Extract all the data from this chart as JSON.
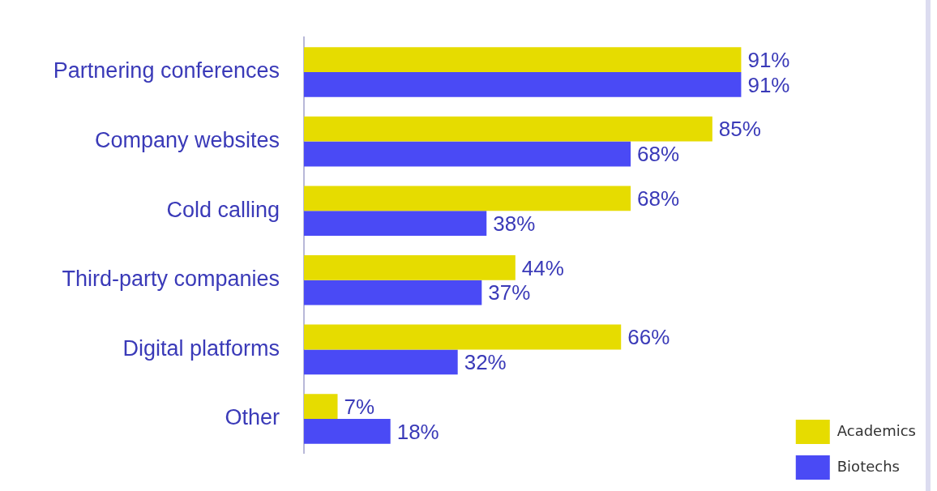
{
  "chart_data": {
    "type": "bar",
    "orientation": "horizontal",
    "categories": [
      "Partnering conferences",
      "Company websites",
      "Cold calling",
      "Third-party companies",
      "Digital platforms",
      "Other"
    ],
    "series": [
      {
        "name": "Academics",
        "color": "#e6dc00",
        "values": [
          91,
          85,
          68,
          44,
          66,
          7
        ],
        "value_labels": [
          "91%",
          "85%",
          "68%",
          "44%",
          "66%",
          "7%"
        ]
      },
      {
        "name": "Biotechs",
        "color": "#4a4af5",
        "values": [
          91,
          68,
          38,
          37,
          32,
          18
        ],
        "value_labels": [
          "91%",
          "68%",
          "38%",
          "37%",
          "32%",
          "18%"
        ]
      }
    ],
    "legend": "bottom right",
    "grid": false
  }
}
